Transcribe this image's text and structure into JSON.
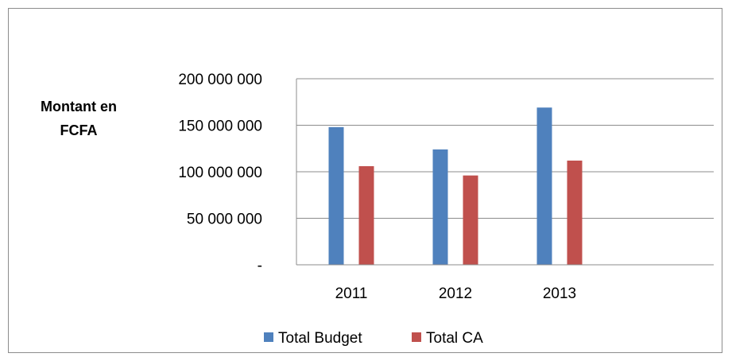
{
  "chart_data": {
    "type": "bar",
    "categories": [
      "2011",
      "2012",
      "2013"
    ],
    "series": [
      {
        "name": "Total Budget",
        "color": "#4f81bd",
        "values": [
          148000000,
          124000000,
          169000000
        ]
      },
      {
        "name": "Total CA",
        "color": "#c0504d",
        "values": [
          106000000,
          96000000,
          112000000
        ]
      }
    ],
    "ylabel_lines": [
      "Montant en",
      "FCFA"
    ],
    "xlabel": "",
    "ylim": [
      0,
      200000000
    ],
    "yticks": [
      {
        "value": 0,
        "label": "-"
      },
      {
        "value": 50000000,
        "label": "50 000 000"
      },
      {
        "value": 100000000,
        "label": "100 000 000"
      },
      {
        "value": 150000000,
        "label": "150 000 000"
      },
      {
        "value": 200000000,
        "label": "200 000 000"
      }
    ],
    "grid": true,
    "legend_position": "bottom"
  }
}
